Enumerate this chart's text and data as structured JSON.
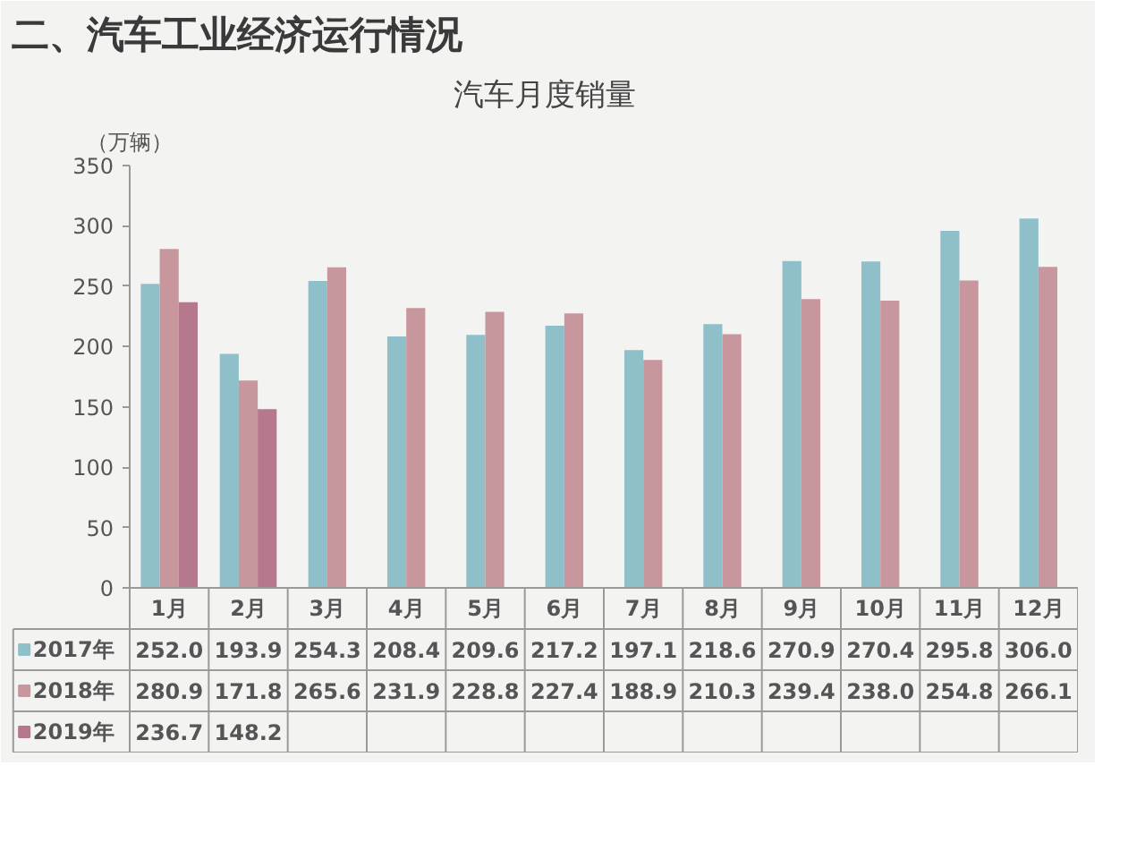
{
  "chart_data": {
    "type": "bar",
    "title": "二、汽车工业经济运行情况",
    "subtitle": "汽车月度销量",
    "ylabel": "（万辆）",
    "categories": [
      "1月",
      "2月",
      "3月",
      "4月",
      "5月",
      "6月",
      "7月",
      "8月",
      "9月",
      "10月",
      "11月",
      "12月"
    ],
    "series": [
      {
        "name": "2017年",
        "color": "#8fbfc8",
        "values": [
          252.0,
          193.9,
          254.3,
          208.4,
          209.6,
          217.2,
          197.1,
          218.6,
          270.9,
          270.4,
          295.8,
          306.0
        ],
        "value_labels": [
          "252.0",
          "193.9",
          "254.3",
          "208.4",
          "209.6",
          "217.2",
          "197.1",
          "218.6",
          "270.9",
          "270.4",
          "295.8",
          "306.0"
        ]
      },
      {
        "name": "2018年",
        "color": "#c8979e",
        "values": [
          280.9,
          171.8,
          265.6,
          231.9,
          228.8,
          227.4,
          188.9,
          210.3,
          239.4,
          238.0,
          254.8,
          266.1
        ],
        "value_labels": [
          "280.9",
          "171.8",
          "265.6",
          "231.9",
          "228.8",
          "227.4",
          "188.9",
          "210.3",
          "239.4",
          "238.0",
          "254.8",
          "266.1"
        ]
      },
      {
        "name": "2019年",
        "color": "#b5788c",
        "values": [
          236.7,
          148.2,
          null,
          null,
          null,
          null,
          null,
          null,
          null,
          null,
          null,
          null
        ],
        "value_labels": [
          "236.7",
          "148.2",
          null,
          null,
          null,
          null,
          null,
          null,
          null,
          null,
          null,
          null
        ]
      }
    ],
    "ylim": [
      0,
      350
    ],
    "yticks": [
      0,
      50,
      100,
      150,
      200,
      250,
      300,
      350
    ],
    "legend": "bottom"
  }
}
